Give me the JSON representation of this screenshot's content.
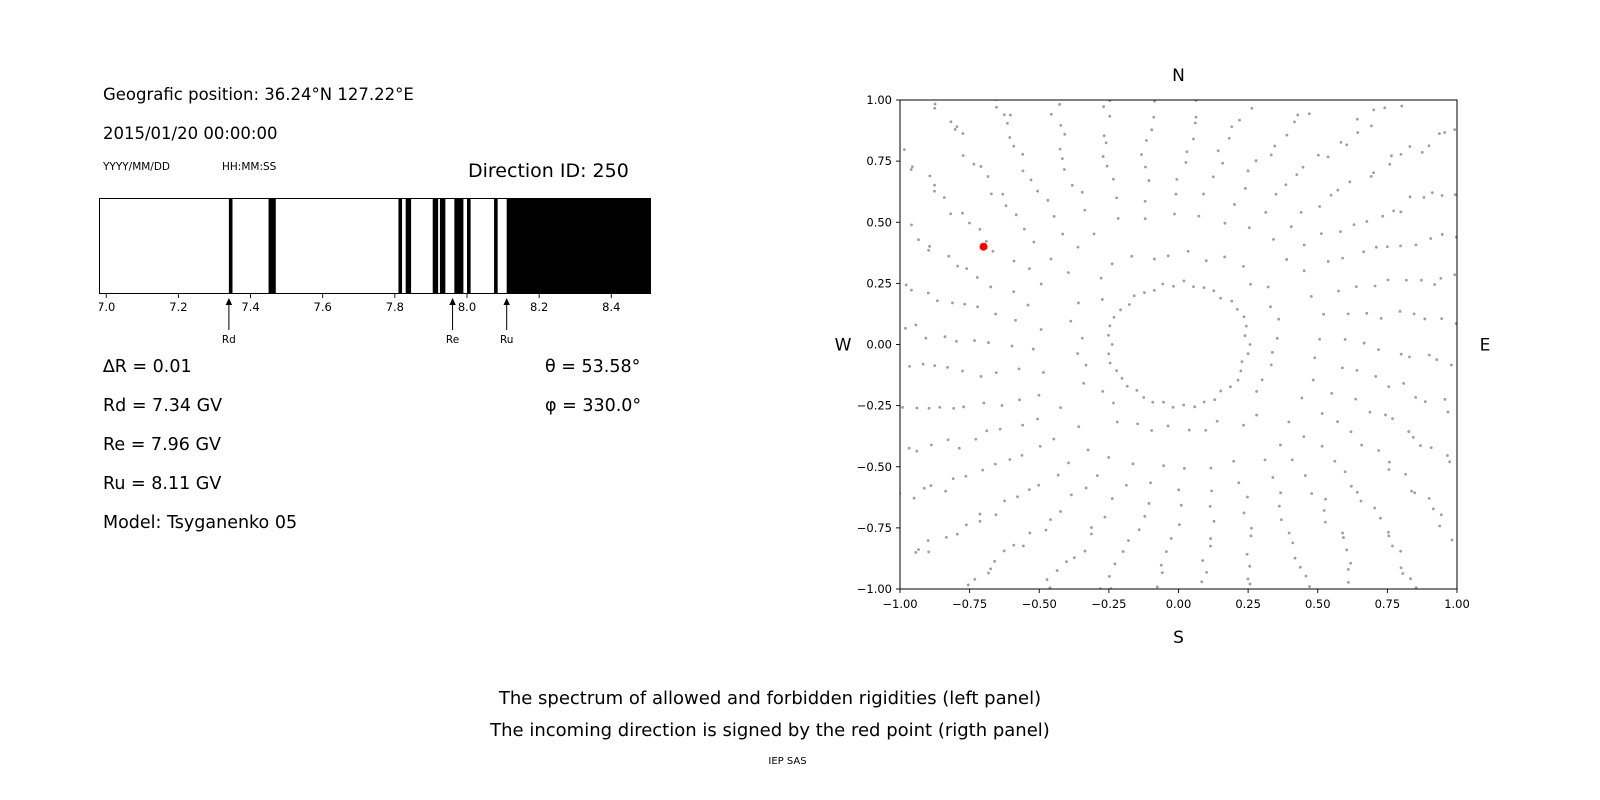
{
  "left_panel": {
    "geo_position": "Geografic position: 36.24°N 127.22°E",
    "datetime": "2015/01/20 00:00:00",
    "date_format_label": "YYYY/MM/DD",
    "time_format_label": "HH:MM:SS",
    "direction_id_label": "Direction ID: 250",
    "delta_r": "∆R = 0.01",
    "rd": "Rd = 7.34 GV",
    "re": "Re = 7.96 GV",
    "ru": "Ru = 8.11 GV",
    "model": "Model: Tsyganenko 05",
    "theta": "θ = 53.58°",
    "phi": "φ = 330.0°"
  },
  "caption": {
    "line1": "The spectrum of allowed and forbidden rigidities (left panel)",
    "line2": "The incoming direction is signed by the red point (rigth panel)",
    "credit": "IEP SAS"
  },
  "chart_data": [
    {
      "name": "rigidity-spectrum",
      "type": "bar",
      "description": "Penumbra barcode: black = forbidden rigidities, white = allowed",
      "xlim": [
        6.98,
        8.51
      ],
      "xticks": [
        "7.0",
        "7.2",
        "7.4",
        "7.6",
        "7.8",
        "8.0",
        "8.2",
        "8.4"
      ],
      "bar_color": "#000000",
      "background": "#ffffff",
      "forbidden_bands": [
        [
          7.34,
          7.35
        ],
        [
          7.45,
          7.47
        ],
        [
          7.81,
          7.82
        ],
        [
          7.83,
          7.845
        ],
        [
          7.905,
          7.92
        ],
        [
          7.925,
          7.94
        ],
        [
          7.965,
          7.99
        ],
        [
          8.0,
          8.01
        ],
        [
          8.075,
          8.085
        ],
        [
          8.11,
          8.51
        ]
      ],
      "cutoff_markers": [
        {
          "label": "Rd",
          "x": 7.34
        },
        {
          "label": "Re",
          "x": 7.96
        },
        {
          "label": "Ru",
          "x": 8.11
        }
      ],
      "values": {
        "delta_R": 0.01,
        "Rd_GV": 7.34,
        "Re_GV": 7.96,
        "Ru_GV": 8.11,
        "theta_deg": 53.58,
        "phi_deg": 330.0
      }
    },
    {
      "name": "incoming-direction-map",
      "type": "scatter",
      "description": "Sky map of trajectory directions (gray dots in radial spokes), incoming direction marked by red point",
      "xlim": [
        -1,
        1
      ],
      "ylim": [
        -1,
        1
      ],
      "xticks": [
        "−1.00",
        "−0.75",
        "−0.50",
        "−0.25",
        "0.00",
        "0.25",
        "0.50",
        "0.75",
        "1.00"
      ],
      "yticks": [
        "1.00",
        "0.75",
        "0.50",
        "0.25",
        "0.00",
        "−0.25",
        "−0.50",
        "−0.75",
        "−1.00"
      ],
      "compass": {
        "top": "N",
        "bottom": "S",
        "left": "W",
        "right": "E"
      },
      "grid": false,
      "dot_color": "#9e9e9e",
      "red_point": {
        "x": -0.7,
        "y": 0.4,
        "color": "#ff0000"
      },
      "dot_pattern": {
        "spoke_count": 36,
        "r_inner": 0.33,
        "r_outer": 1.35,
        "points_per_spoke": 20,
        "curvature_deg": 15,
        "inner_ring_radius": 0.25,
        "inner_ring_count": 42
      }
    }
  ]
}
